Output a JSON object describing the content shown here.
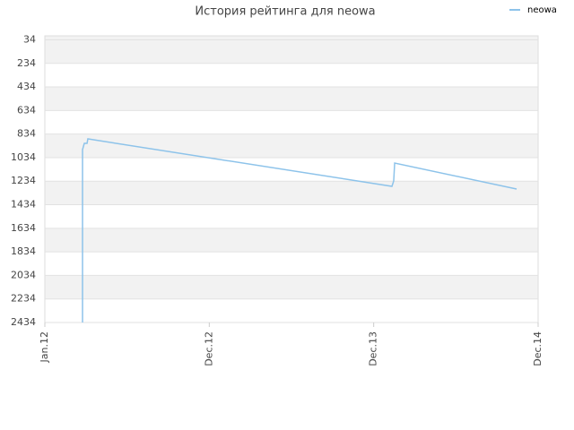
{
  "chart_data": {
    "type": "line",
    "title": "История рейтинга для neowa",
    "x": [
      2.75,
      2.75,
      2.88,
      3.08,
      3.14,
      25.33,
      25.46,
      25.53,
      34.43
    ],
    "series": [
      {
        "name": "neowa",
        "color": "#8dc3ea",
        "values": [
          2434,
          966,
          913,
          913,
          875,
          1278,
          1232,
          1080,
          1301
        ]
      }
    ],
    "xlim": [
      0,
      36
    ],
    "xticks": [
      {
        "value": 0,
        "label": "Jan.12"
      },
      {
        "value": 12,
        "label": "Dec.12"
      },
      {
        "value": 24,
        "label": "Dec.13"
      },
      {
        "value": 36,
        "label": "Dec.14"
      }
    ],
    "ylim": [
      2434,
      0
    ],
    "yticks": [
      34,
      234,
      434,
      634,
      834,
      1034,
      1234,
      1434,
      1634,
      1834,
      2034,
      2234,
      2434
    ],
    "grid": true,
    "legend": "top-right"
  }
}
